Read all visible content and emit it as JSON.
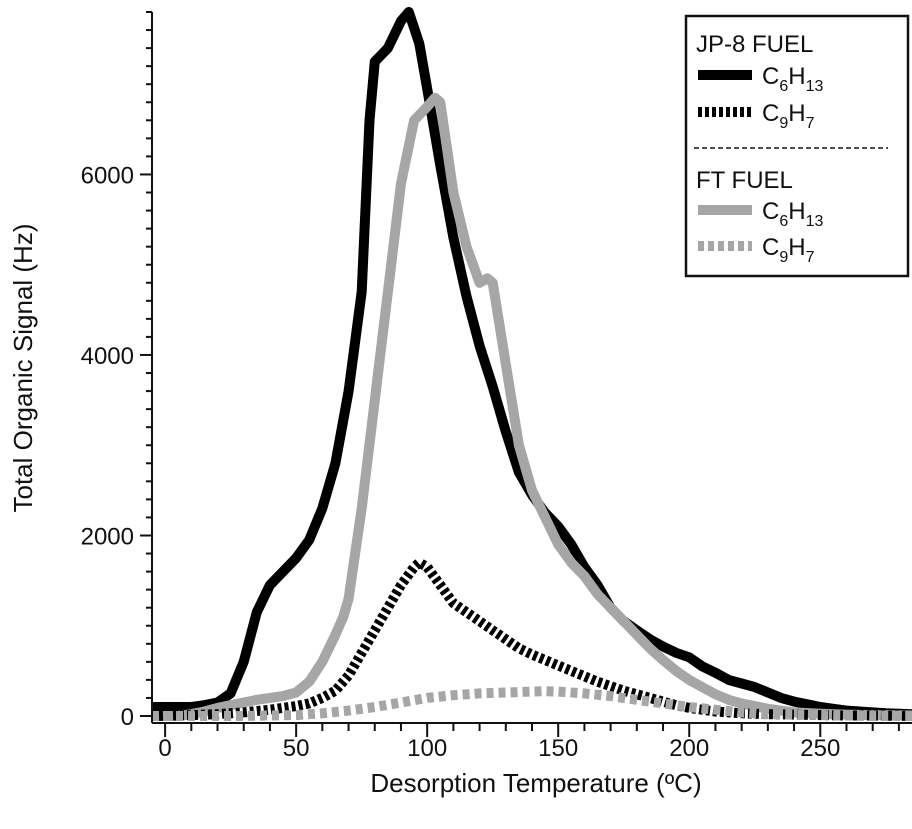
{
  "chart_data": {
    "type": "line",
    "title": "",
    "xlabel": "Desorption Temperature (ºC)",
    "ylabel": "Total Organic Signal (Hz)",
    "xlim": [
      -5,
      285
    ],
    "ylim": [
      0,
      7800
    ],
    "xticks": [
      "0",
      "50",
      "100",
      "150",
      "200",
      "250"
    ],
    "xtick_values": [
      0,
      50,
      100,
      150,
      200,
      250
    ],
    "yticks": [
      "0",
      "2000",
      "4000",
      "6000"
    ],
    "ytick_values": [
      0,
      2000,
      4000,
      6000
    ],
    "grid": false,
    "legend": {
      "placement": "top-right",
      "groups": [
        {
          "title": "JP-8 FUEL",
          "entries": [
            {
              "main": "C",
              "sub1": "6",
              "mid": "H",
              "sub2": "13",
              "color": "#000000",
              "dashed": false
            },
            {
              "main": "C",
              "sub1": "9",
              "mid": "H",
              "sub2": "7",
              "color": "#000000",
              "dashed": true
            }
          ]
        },
        {
          "title": "FT FUEL",
          "entries": [
            {
              "main": "C",
              "sub1": "6",
              "mid": "H",
              "sub2": "13",
              "color": "#a6a6a6",
              "dashed": false
            },
            {
              "main": "C",
              "sub1": "9",
              "mid": "H",
              "sub2": "7",
              "color": "#a6a6a6",
              "dashed": true
            }
          ]
        }
      ]
    },
    "series": [
      {
        "color": "#000000",
        "dashed": false,
        "z": 1,
        "x": [
          -5,
          5,
          10,
          15,
          20,
          25,
          30,
          35,
          40,
          45,
          50,
          55,
          60,
          65,
          70,
          75,
          78,
          80,
          85,
          90,
          93,
          97,
          100,
          105,
          110,
          115,
          120,
          125,
          130,
          135,
          140,
          145,
          150,
          155,
          160,
          165,
          170,
          175,
          180,
          185,
          190,
          195,
          200,
          205,
          210,
          215,
          220,
          225,
          230,
          235,
          240,
          245,
          250,
          255,
          260,
          265,
          270,
          275,
          280,
          285
        ],
        "y": [
          100,
          100,
          100,
          120,
          150,
          250,
          600,
          1150,
          1450,
          1600,
          1750,
          1950,
          2300,
          2800,
          3600,
          4700,
          6600,
          7250,
          7400,
          7700,
          7800,
          7450,
          6950,
          6100,
          5300,
          4650,
          4100,
          3650,
          3150,
          2700,
          2450,
          2250,
          2100,
          1900,
          1650,
          1450,
          1200,
          1050,
          950,
          850,
          770,
          700,
          650,
          550,
          480,
          400,
          360,
          320,
          260,
          200,
          160,
          130,
          100,
          80,
          60,
          50,
          40,
          30,
          25,
          20
        ]
      },
      {
        "color": "#a6a6a6",
        "dashed": false,
        "z": 2,
        "x": [
          -5,
          5,
          10,
          15,
          20,
          25,
          30,
          35,
          40,
          45,
          50,
          55,
          60,
          65,
          68,
          70,
          72,
          75,
          80,
          85,
          90,
          95,
          100,
          103,
          105,
          110,
          115,
          120,
          123,
          125,
          130,
          135,
          140,
          145,
          150,
          155,
          160,
          165,
          170,
          175,
          180,
          185,
          190,
          195,
          200,
          205,
          210,
          215,
          220,
          225,
          230,
          235,
          240,
          250,
          260,
          270,
          285
        ],
        "y": [
          0,
          0,
          20,
          50,
          90,
          120,
          150,
          180,
          200,
          220,
          260,
          380,
          600,
          900,
          1100,
          1300,
          1700,
          2300,
          3500,
          4700,
          5900,
          6600,
          6750,
          6850,
          6800,
          5800,
          5200,
          4800,
          4850,
          4800,
          3900,
          3000,
          2500,
          2200,
          1900,
          1700,
          1550,
          1350,
          1200,
          1050,
          900,
          750,
          620,
          500,
          400,
          320,
          240,
          180,
          140,
          110,
          80,
          60,
          40,
          25,
          15,
          10,
          5
        ]
      },
      {
        "color": "#000000",
        "dashed": true,
        "z": 3,
        "x": [
          -5,
          10,
          20,
          30,
          40,
          50,
          55,
          60,
          65,
          70,
          75,
          80,
          85,
          90,
          95,
          97,
          100,
          105,
          110,
          115,
          120,
          125,
          130,
          135,
          140,
          145,
          150,
          155,
          160,
          165,
          170,
          175,
          180,
          185,
          190,
          195,
          200,
          205,
          210,
          215,
          220,
          230,
          240,
          250,
          260,
          270,
          285
        ],
        "y": [
          0,
          10,
          20,
          40,
          70,
          110,
          140,
          200,
          280,
          450,
          700,
          950,
          1200,
          1450,
          1650,
          1700,
          1650,
          1450,
          1250,
          1150,
          1050,
          950,
          850,
          750,
          680,
          620,
          560,
          500,
          440,
          380,
          330,
          280,
          240,
          200,
          160,
          120,
          90,
          70,
          50,
          40,
          30,
          20,
          15,
          10,
          5,
          5,
          0
        ]
      },
      {
        "color": "#a6a6a6",
        "dashed": true,
        "z": 4,
        "x": [
          -5,
          10,
          20,
          30,
          40,
          50,
          60,
          70,
          80,
          90,
          100,
          110,
          120,
          130,
          140,
          145,
          150,
          160,
          170,
          180,
          190,
          200,
          210,
          220,
          230,
          250,
          270,
          285
        ],
        "y": [
          0,
          0,
          0,
          0,
          5,
          10,
          30,
          60,
          100,
          150,
          200,
          230,
          250,
          260,
          270,
          275,
          270,
          250,
          220,
          180,
          140,
          100,
          70,
          40,
          20,
          10,
          0,
          0
        ]
      }
    ]
  }
}
